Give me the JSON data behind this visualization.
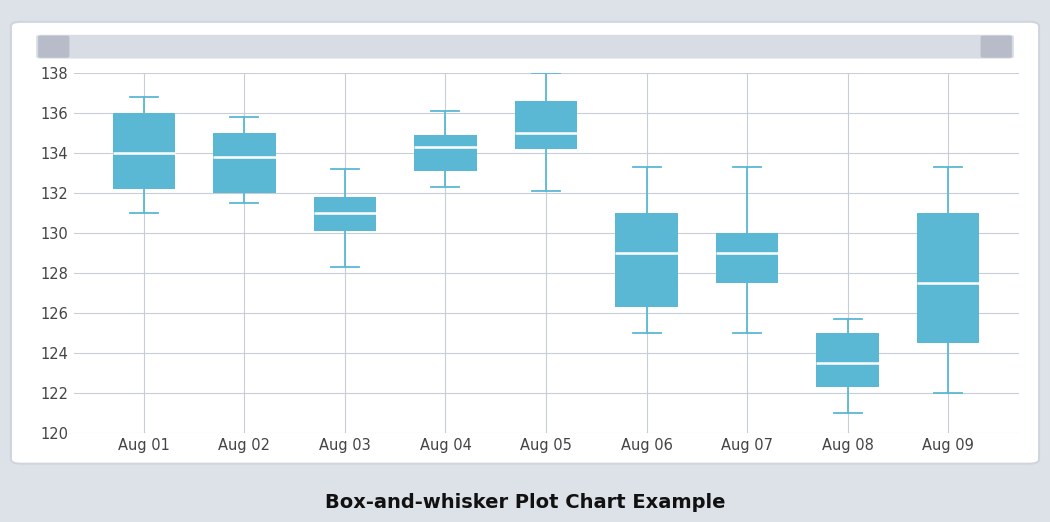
{
  "title": "Box-and-whisker Plot Chart Example",
  "categories": [
    "Aug 01",
    "Aug 02",
    "Aug 03",
    "Aug 04",
    "Aug 05",
    "Aug 06",
    "Aug 07",
    "Aug 08",
    "Aug 09"
  ],
  "boxes": [
    {
      "whisker_low": 131.0,
      "q1": 132.2,
      "median": 134.0,
      "q3": 136.0,
      "whisker_high": 136.8
    },
    {
      "whisker_low": 131.5,
      "q1": 132.0,
      "median": 133.8,
      "q3": 135.0,
      "whisker_high": 135.8
    },
    {
      "whisker_low": 128.3,
      "q1": 130.1,
      "median": 131.0,
      "q3": 131.8,
      "whisker_high": 133.2
    },
    {
      "whisker_low": 132.3,
      "q1": 133.1,
      "median": 134.3,
      "q3": 134.9,
      "whisker_high": 136.1
    },
    {
      "whisker_low": 132.1,
      "q1": 134.2,
      "median": 135.0,
      "q3": 136.6,
      "whisker_high": 138.0
    },
    {
      "whisker_low": 125.0,
      "q1": 126.3,
      "median": 129.0,
      "q3": 131.0,
      "whisker_high": 133.3
    },
    {
      "whisker_low": 125.0,
      "q1": 127.5,
      "median": 129.0,
      "q3": 130.0,
      "whisker_high": 133.3
    },
    {
      "whisker_low": 121.0,
      "q1": 122.3,
      "median": 123.5,
      "q3": 125.0,
      "whisker_high": 125.7
    },
    {
      "whisker_low": 122.0,
      "q1": 124.5,
      "median": 127.5,
      "q3": 131.0,
      "whisker_high": 133.3
    }
  ],
  "box_color": "#5bb8d4",
  "median_color": "#ffffff",
  "whisker_color": "#5bb8d4",
  "outer_bg": "#dde1e8",
  "panel_bg": "#ffffff",
  "plot_bg": "#ffffff",
  "grid_color": "#c8cdd8",
  "scrollbar_color": "#c8cdd8",
  "ylim": [
    120,
    138
  ],
  "yticks": [
    120,
    122,
    124,
    126,
    128,
    130,
    132,
    134,
    136,
    138
  ],
  "title_fontsize": 14,
  "tick_fontsize": 10.5,
  "box_width": 0.62
}
